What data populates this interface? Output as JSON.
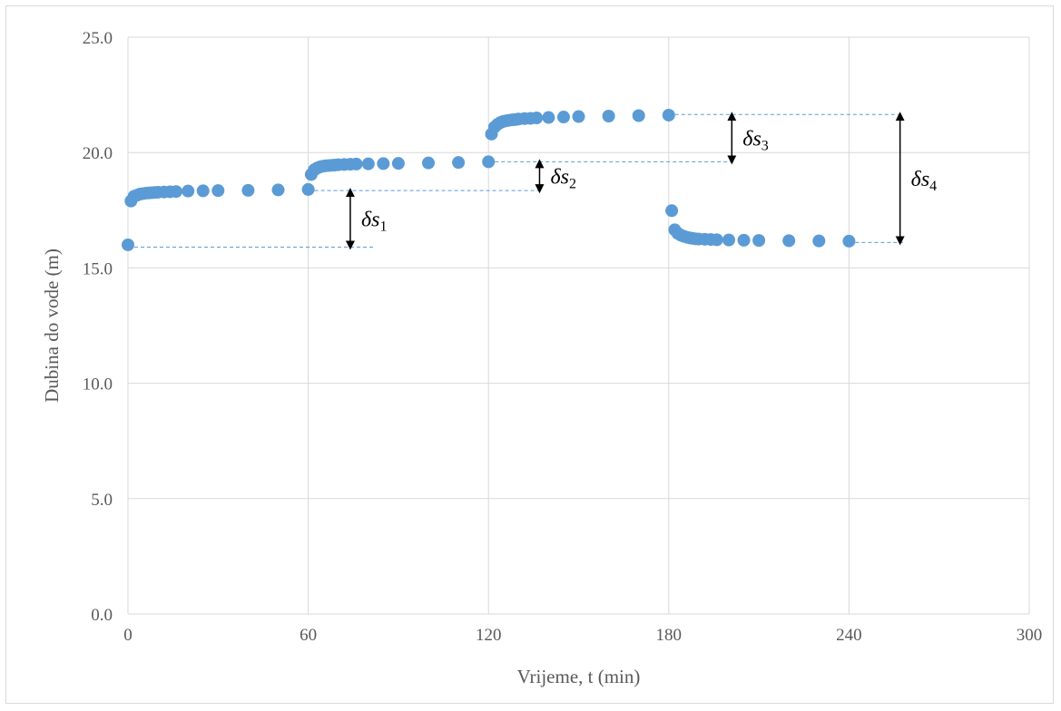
{
  "chart_data": {
    "type": "scatter",
    "title": "",
    "xlabel": "Vrijeme, t (min)",
    "ylabel": "Dubina do vode (m)",
    "xlim": [
      0,
      300
    ],
    "ylim": [
      0,
      25
    ],
    "x_ticks": [
      0,
      60,
      120,
      180,
      240,
      300
    ],
    "x_tick_labels": [
      "0",
      "60",
      "120",
      "180",
      "240",
      "300"
    ],
    "y_ticks": [
      0,
      5,
      10,
      15,
      20,
      25
    ],
    "y_tick_labels": [
      "0.0",
      "5.0",
      "10.0",
      "15.0",
      "20.0",
      "25.0"
    ],
    "grid": "major",
    "legend": "none",
    "marker_color": "#5B9BD5",
    "series": [
      {
        "x": [
          0,
          1,
          2,
          3,
          4,
          5,
          6,
          7,
          8,
          9,
          10,
          12,
          14,
          16,
          20,
          25,
          30,
          40,
          50,
          60,
          61,
          62,
          63,
          64,
          65,
          66,
          67,
          68,
          69,
          70,
          72,
          74,
          76,
          80,
          85,
          90,
          100,
          110,
          120,
          121,
          122,
          123,
          124,
          125,
          126,
          127,
          128,
          129,
          130,
          132,
          134,
          136,
          140,
          145,
          150,
          160,
          170,
          180,
          181,
          182,
          183,
          184,
          185,
          186,
          187,
          188,
          189,
          190,
          192,
          194,
          196,
          200,
          205,
          210,
          220,
          230,
          240
        ],
        "y": [
          16.0,
          17.9,
          18.1,
          18.15,
          18.2,
          18.22,
          18.24,
          18.25,
          18.26,
          18.27,
          18.28,
          18.29,
          18.3,
          18.31,
          18.33,
          18.34,
          18.35,
          18.36,
          18.38,
          18.4,
          19.05,
          19.25,
          19.33,
          19.38,
          19.41,
          19.43,
          19.44,
          19.45,
          19.46,
          19.47,
          19.48,
          19.49,
          19.5,
          19.51,
          19.52,
          19.53,
          19.55,
          19.57,
          19.6,
          20.8,
          21.1,
          21.22,
          21.3,
          21.35,
          21.38,
          21.4,
          21.42,
          21.43,
          21.45,
          21.47,
          21.48,
          21.5,
          21.52,
          21.54,
          21.56,
          21.58,
          21.6,
          21.62,
          17.48,
          16.65,
          16.5,
          16.42,
          16.37,
          16.33,
          16.3,
          16.28,
          16.26,
          16.25,
          16.24,
          16.23,
          16.22,
          16.21,
          16.2,
          16.19,
          16.18,
          16.17,
          16.16
        ]
      }
    ],
    "reference_lines": [
      {
        "x": [
          0,
          82
        ],
        "y": 15.9
      },
      {
        "x": [
          60,
          138
        ],
        "y": 18.35
      },
      {
        "x": [
          120,
          202
        ],
        "y": 19.6
      },
      {
        "x": [
          180,
          258
        ],
        "y": 21.65
      },
      {
        "x": [
          240,
          258
        ],
        "y": 16.1
      }
    ],
    "annotations": [
      {
        "symbol": "δs",
        "subscript": "1",
        "x": 74,
        "y_from": 15.9,
        "y_to": 18.35
      },
      {
        "symbol": "δs",
        "subscript": "2",
        "x": 137,
        "y_from": 18.35,
        "y_to": 19.6
      },
      {
        "symbol": "δs",
        "subscript": "3",
        "x": 201,
        "y_from": 19.6,
        "y_to": 21.65
      },
      {
        "symbol": "δs",
        "subscript": "4",
        "x": 257,
        "y_from": 16.1,
        "y_to": 21.65
      }
    ]
  }
}
